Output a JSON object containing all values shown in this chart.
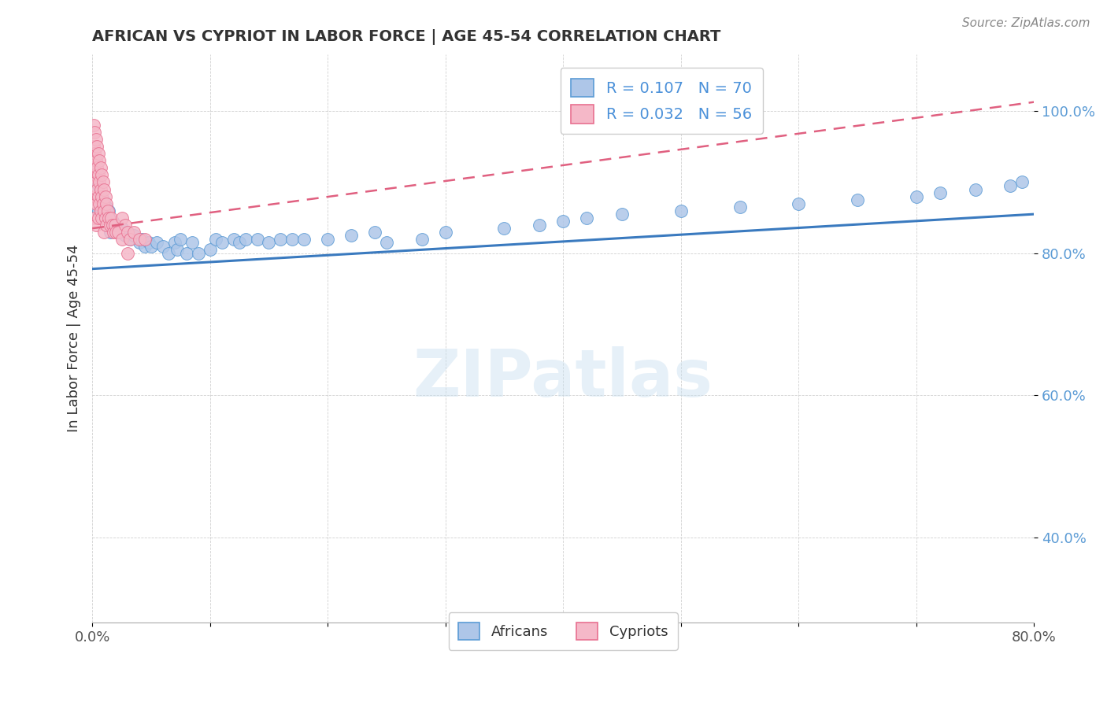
{
  "title": "AFRICAN VS CYPRIOT IN LABOR FORCE | AGE 45-54 CORRELATION CHART",
  "source": "Source: ZipAtlas.com",
  "ylabel": "In Labor Force | Age 45-54",
  "xlim": [
    0.0,
    0.8
  ],
  "ylim": [
    0.28,
    1.08
  ],
  "xtick_positions": [
    0.0,
    0.1,
    0.2,
    0.3,
    0.4,
    0.5,
    0.6,
    0.7,
    0.8
  ],
  "xticklabels_show": [
    "0.0%",
    "",
    "",
    "",
    "",
    "",
    "",
    "",
    "80.0%"
  ],
  "ytick_positions": [
    0.4,
    0.6,
    0.8,
    1.0
  ],
  "ytick_labels": [
    "40.0%",
    "60.0%",
    "80.0%",
    "100.0%"
  ],
  "african_R": 0.107,
  "african_N": 70,
  "cypriot_R": 0.032,
  "cypriot_N": 56,
  "african_color": "#aec6e8",
  "cypriot_color": "#f5b8c8",
  "african_edge_color": "#5b9bd5",
  "cypriot_edge_color": "#e87090",
  "african_line_color": "#3a7abf",
  "cypriot_line_color": "#e06080",
  "watermark_text": "ZIPatlas",
  "african_x": [
    0.005,
    0.005,
    0.006,
    0.007,
    0.008,
    0.008,
    0.009,
    0.01,
    0.01,
    0.011,
    0.012,
    0.013,
    0.014,
    0.015,
    0.015,
    0.017,
    0.018,
    0.019,
    0.02,
    0.022,
    0.025,
    0.028,
    0.03,
    0.032,
    0.035,
    0.04,
    0.042,
    0.045,
    0.048,
    0.05,
    0.055,
    0.06,
    0.065,
    0.07,
    0.072,
    0.075,
    0.08,
    0.085,
    0.09,
    0.1,
    0.105,
    0.11,
    0.12,
    0.125,
    0.13,
    0.14,
    0.15,
    0.16,
    0.17,
    0.18,
    0.2,
    0.22,
    0.24,
    0.25,
    0.28,
    0.3,
    0.35,
    0.38,
    0.4,
    0.42,
    0.45,
    0.5,
    0.55,
    0.6,
    0.65,
    0.7,
    0.72,
    0.75,
    0.78,
    0.79
  ],
  "african_y": [
    0.895,
    0.86,
    0.88,
    0.875,
    0.87,
    0.86,
    0.875,
    0.87,
    0.85,
    0.86,
    0.865,
    0.855,
    0.86,
    0.845,
    0.83,
    0.845,
    0.84,
    0.835,
    0.84,
    0.83,
    0.835,
    0.825,
    0.83,
    0.82,
    0.825,
    0.815,
    0.82,
    0.81,
    0.815,
    0.81,
    0.815,
    0.81,
    0.8,
    0.815,
    0.805,
    0.82,
    0.8,
    0.815,
    0.8,
    0.805,
    0.82,
    0.815,
    0.82,
    0.815,
    0.82,
    0.82,
    0.815,
    0.82,
    0.82,
    0.82,
    0.82,
    0.825,
    0.83,
    0.815,
    0.82,
    0.83,
    0.835,
    0.84,
    0.845,
    0.85,
    0.855,
    0.86,
    0.865,
    0.87,
    0.875,
    0.88,
    0.885,
    0.89,
    0.895,
    0.9
  ],
  "cypriot_x": [
    0.001,
    0.001,
    0.001,
    0.002,
    0.002,
    0.002,
    0.002,
    0.002,
    0.003,
    0.003,
    0.003,
    0.003,
    0.003,
    0.004,
    0.004,
    0.004,
    0.005,
    0.005,
    0.005,
    0.005,
    0.006,
    0.006,
    0.006,
    0.007,
    0.007,
    0.007,
    0.008,
    0.008,
    0.008,
    0.009,
    0.009,
    0.01,
    0.01,
    0.01,
    0.011,
    0.011,
    0.012,
    0.012,
    0.013,
    0.014,
    0.015,
    0.016,
    0.017,
    0.018,
    0.019,
    0.02,
    0.022,
    0.025,
    0.025,
    0.028,
    0.03,
    0.03,
    0.032,
    0.035,
    0.04,
    0.045
  ],
  "cypriot_y": [
    0.98,
    0.95,
    0.92,
    0.97,
    0.94,
    0.91,
    0.88,
    0.85,
    0.96,
    0.93,
    0.9,
    0.87,
    0.84,
    0.95,
    0.92,
    0.89,
    0.94,
    0.91,
    0.88,
    0.85,
    0.93,
    0.9,
    0.87,
    0.92,
    0.89,
    0.86,
    0.91,
    0.88,
    0.85,
    0.9,
    0.87,
    0.89,
    0.86,
    0.83,
    0.88,
    0.85,
    0.87,
    0.84,
    0.86,
    0.85,
    0.84,
    0.85,
    0.84,
    0.83,
    0.84,
    0.83,
    0.83,
    0.82,
    0.85,
    0.84,
    0.83,
    0.8,
    0.82,
    0.83,
    0.82,
    0.82
  ],
  "african_trendline_x": [
    0.0,
    0.8
  ],
  "african_trendline_y": [
    0.778,
    0.855
  ],
  "cypriot_trendline_x": [
    0.0,
    0.045
  ],
  "cypriot_trendline_y": [
    0.835,
    0.845
  ]
}
